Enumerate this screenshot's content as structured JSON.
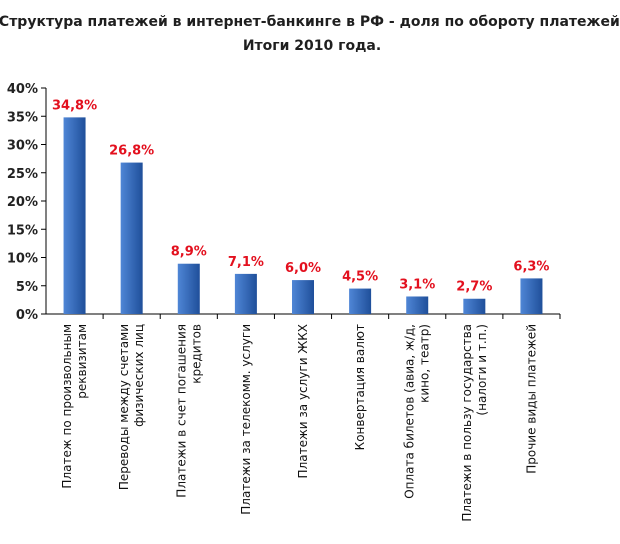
{
  "chart_data": {
    "type": "bar",
    "title": "Структура платежей в интернет-банкинге в РФ - доля по обороту платежей.",
    "subtitle": "Итоги 2010 года.",
    "xlabel": "",
    "ylabel": "",
    "ylim": [
      0,
      40
    ],
    "yticks": [
      "0%",
      "5%",
      "10%",
      "15%",
      "20%",
      "25%",
      "30%",
      "35%",
      "40%"
    ],
    "grid": false,
    "categories": [
      [
        "Платеж по произвольным",
        "реквизитам"
      ],
      [
        "Переводы между счетами",
        "физических лиц"
      ],
      [
        "Платежи в счет погашения",
        "кредитов"
      ],
      [
        "Платежи за телекомм. услуги"
      ],
      [
        "Платежи за услуги ЖКХ"
      ],
      [
        "Конвертация валют"
      ],
      [
        "Оплата билетов (авиа, ж/д,",
        "кино, театр)"
      ],
      [
        "Платежи в пользу государства",
        "(налоги и т.п.)"
      ],
      [
        "Прочие виды платежей"
      ]
    ],
    "values": [
      34.8,
      26.8,
      8.9,
      7.1,
      6.0,
      4.5,
      3.1,
      2.7,
      6.3
    ],
    "data_labels": [
      "34,8%",
      "26,8%",
      "8,9%",
      "7,1%",
      "6,0%",
      "4,5%",
      "3,1%",
      "2,7%",
      "6,3%"
    ],
    "colors": {
      "bar_light": "#4f86d6",
      "bar_dark": "#1f4f9a",
      "label": "#e3101e",
      "axis": "#000000"
    }
  }
}
